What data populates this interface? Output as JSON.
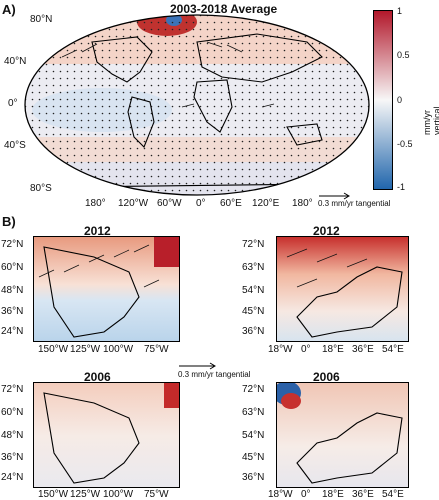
{
  "panel_a": {
    "letter": "A)",
    "title": "2003-2018 Average",
    "lat_labels": [
      "80°N",
      "40°N",
      "0°",
      "40°S",
      "80°S"
    ],
    "lon_labels": [
      "180°",
      "120°W",
      "60°W",
      "0°",
      "60°E",
      "120°E",
      "180°"
    ],
    "colorbar": {
      "label": "mm/yr vertical",
      "ticks": [
        "1",
        "0.5",
        "0",
        "-0.5",
        "-1"
      ],
      "colors": {
        "high": "#b2182b",
        "mid": "#f7f7f7",
        "low": "#2166ac"
      }
    },
    "vector_key": "0.3 mm/yr tangential"
  },
  "panel_b": {
    "letter": "B)",
    "vector_key": "0.3 mm/yr tangential",
    "maps": [
      {
        "title": "2012",
        "lat_labels": [
          "72°N",
          "60°N",
          "48°N",
          "36°N",
          "24°N"
        ],
        "lon_labels": [
          "150°W",
          "125°W",
          "100°W",
          "75°W"
        ]
      },
      {
        "title": "2012",
        "lat_labels": [
          "72°N",
          "63°N",
          "54°N",
          "45°N",
          "36°N"
        ],
        "lon_labels": [
          "18°W",
          "0°",
          "18°E",
          "36°E",
          "54°E"
        ]
      },
      {
        "title": "2006",
        "lat_labels": [
          "72°N",
          "60°N",
          "48°N",
          "36°N",
          "24°N"
        ],
        "lon_labels": [
          "150°W",
          "125°W",
          "100°W",
          "75°W"
        ]
      },
      {
        "title": "2006",
        "lat_labels": [
          "72°N",
          "63°N",
          "54°N",
          "45°N",
          "36°N"
        ],
        "lon_labels": [
          "18°W",
          "0°",
          "18°E",
          "36°E",
          "54°E"
        ]
      }
    ]
  }
}
